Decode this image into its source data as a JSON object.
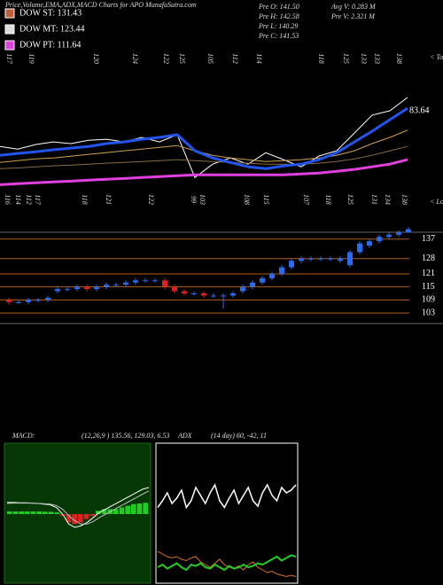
{
  "header": {
    "title": "Price,Volume,EMA,ADX,MACD Charts for APO MunafaSutra.com",
    "legend": [
      {
        "label": "DOW ST: 131.43",
        "color": "#c0603a"
      },
      {
        "label": "DOW MT: 123.44",
        "color": "#dddddd"
      },
      {
        "label": "DOW PT: 111.64",
        "color": "#e040e0"
      }
    ],
    "stats": [
      "Pre  O: 141.50",
      "Pre  H: 142.58",
      "Pre  L: 140.29",
      "Pre  C: 141.53",
      "Avg V: 0.283 M",
      "Pre  V: 2.321 M"
    ]
  },
  "chart_data": [
    {
      "type": "line",
      "annotation": "83.64",
      "tops_label": "< Tops",
      "lows_label": "< Lows",
      "tops": [
        117,
        119,
        120,
        124,
        122,
        125,
        105,
        112,
        114,
        118,
        125,
        133,
        133,
        138
      ],
      "lows": [
        116,
        114,
        112,
        117,
        118,
        121,
        122,
        99,
        103,
        108,
        115,
        107,
        118,
        125,
        131,
        134,
        138
      ],
      "ylim": [
        97,
        160
      ],
      "series": [
        {
          "color": "#ffffff",
          "width": 1,
          "values": [
            121.0,
            119.9,
            121.8,
            122.9,
            122.2,
            123.6,
            124.0,
            122.9,
            124.8,
            122.9,
            125.9,
            108.0,
            113.6,
            116.2,
            113.6,
            118.4,
            115.5,
            112.5,
            117.0,
            119.2,
            126.6,
            134.1,
            135.9,
            141.5
          ]
        },
        {
          "color": "#8a6a40",
          "width": 1,
          "values": [
            111.7,
            112.0,
            112.5,
            112.9,
            113.2,
            113.6,
            114.0,
            114.3,
            114.7,
            115.1,
            115.5,
            115.1,
            114.7,
            114.3,
            114.0,
            113.6,
            113.6,
            113.6,
            114.0,
            114.7,
            115.8,
            117.3,
            119.2,
            121.0
          ]
        },
        {
          "color": "#d0a050",
          "width": 1,
          "values": [
            114.3,
            115.1,
            115.8,
            116.2,
            116.9,
            117.7,
            118.4,
            119.2,
            119.9,
            120.6,
            121.4,
            119.2,
            117.3,
            116.2,
            115.5,
            114.7,
            115.1,
            115.5,
            116.2,
            117.3,
            119.2,
            122.2,
            124.8,
            127.8
          ]
        },
        {
          "color": "#2255ee",
          "width": 3,
          "values": [
            117.3,
            118.1,
            118.8,
            119.6,
            120.3,
            121.0,
            122.2,
            122.9,
            124.0,
            124.8,
            125.9,
            119.2,
            116.2,
            114.3,
            112.5,
            111.7,
            112.9,
            113.6,
            115.5,
            118.4,
            122.9,
            127.4,
            132.2,
            137.0
          ]
        },
        {
          "color": "#e040e0",
          "width": 3,
          "values": [
            105.0,
            105.4,
            105.8,
            106.2,
            106.5,
            106.9,
            107.3,
            107.6,
            108.0,
            108.4,
            108.8,
            109.1,
            109.1,
            109.1,
            109.1,
            109.1,
            109.1,
            109.5,
            109.9,
            110.6,
            111.4,
            112.5,
            113.6,
            115.5
          ]
        }
      ]
    },
    {
      "type": "candlestick",
      "ylim": [
        101,
        143
      ],
      "yticks": [
        103,
        109,
        115,
        121,
        128,
        137
      ],
      "grid_color": "#b06020",
      "up_color": "#2a6cf0",
      "down_color": "#e02020",
      "open": [
        109,
        108,
        108,
        109,
        109,
        113,
        114,
        114,
        115,
        114,
        115,
        116,
        116,
        117,
        118,
        118,
        118,
        115,
        113,
        112,
        112,
        111,
        111,
        111,
        113,
        115,
        117,
        119,
        121,
        124,
        127,
        128,
        128,
        128,
        127,
        125,
        131,
        134,
        136,
        138,
        139,
        140
      ],
      "high": [
        110,
        109,
        110,
        110,
        111,
        115,
        115,
        116,
        116,
        116,
        117,
        117,
        118,
        119,
        119,
        119,
        119,
        116,
        114,
        113,
        113,
        112,
        112,
        113,
        116,
        118,
        120,
        122,
        125,
        128,
        129,
        129,
        129,
        129,
        129,
        132,
        136,
        137,
        139,
        140,
        141,
        142.58
      ],
      "low": [
        107,
        107,
        107,
        108,
        108,
        112,
        113,
        113,
        113,
        113,
        114,
        115,
        115,
        116,
        117,
        117,
        114,
        112,
        111,
        111,
        110,
        110,
        105,
        110,
        112,
        114,
        116,
        118,
        120,
        123,
        126,
        127,
        127,
        127,
        126,
        124,
        130,
        133,
        135,
        137,
        138,
        140.29
      ],
      "close": [
        108,
        108,
        109,
        109,
        110,
        114,
        114,
        115,
        114,
        115,
        116,
        116,
        117,
        118,
        118,
        118,
        115,
        113,
        112,
        112,
        111,
        111,
        111,
        112,
        115,
        117,
        119,
        121,
        124,
        127,
        128,
        128,
        128,
        128,
        128,
        131,
        135,
        136,
        138,
        139,
        140,
        141.53
      ]
    },
    {
      "type": "macd",
      "title": "MACD:",
      "params": "(12,26,9 ) 135.56, 129.03, 6.53",
      "ylim": [
        -20,
        20
      ],
      "bar_up_color": "#22cc22",
      "bar_down_color": "#dd2222",
      "histogram": [
        0.8,
        0.8,
        0.8,
        0.8,
        0.8,
        0.8,
        0.7,
        0.7,
        0.5,
        -0.5,
        -2.5,
        -3,
        -2.5,
        -1.5,
        -0.5,
        1,
        1.5,
        1.5,
        1.5,
        2,
        2.5,
        3,
        3.2,
        3.4
      ],
      "series": [
        {
          "color": "#ffffff",
          "width": 1,
          "values": [
            3.5,
            3.5,
            3.4,
            3.4,
            3.3,
            3.2,
            3.0,
            2.8,
            2.0,
            0,
            -3,
            -4,
            -3.5,
            -2.5,
            -1,
            0.5,
            1.5,
            2.5,
            3.5,
            4.5,
            5.5,
            6.5,
            7.5,
            8.0
          ]
        },
        {
          "color": "#bbbbbb",
          "width": 1,
          "values": [
            3.2,
            3.3,
            3.3,
            3.3,
            3.3,
            3.2,
            3.1,
            3.0,
            2.6,
            1.5,
            -0.5,
            -2,
            -3,
            -3,
            -2.2,
            -1,
            0,
            1,
            2,
            3,
            4,
            5,
            6,
            7
          ]
        }
      ]
    },
    {
      "type": "line",
      "title": "ADX",
      "params": "(14  day) 60,  -42,  11",
      "ylim": [
        0,
        100
      ],
      "series": [
        {
          "color": "#ffffff",
          "width": 1.5,
          "values": [
            55,
            60,
            66,
            58,
            62,
            68,
            55,
            60,
            70,
            64,
            58,
            66,
            72,
            60,
            55,
            62,
            68,
            58,
            64,
            70,
            60,
            56,
            66,
            72,
            64,
            60,
            70,
            66,
            68,
            72
          ]
        },
        {
          "color": "#e07020",
          "width": 1,
          "values": [
            22,
            20,
            18,
            17,
            18,
            16,
            15,
            17,
            18,
            14,
            12,
            10,
            13,
            16,
            12,
            10,
            9,
            11,
            8,
            12,
            14,
            10,
            8,
            6,
            7,
            5,
            4,
            3,
            4,
            3
          ]
        },
        {
          "color": "#22cc22",
          "width": 2,
          "values": [
            10,
            12,
            9,
            11,
            13,
            10,
            8,
            12,
            11,
            13,
            10,
            9,
            12,
            10,
            8,
            11,
            9,
            10,
            12,
            10,
            11,
            13,
            12,
            14,
            16,
            18,
            15,
            17,
            19,
            18
          ]
        }
      ]
    }
  ]
}
